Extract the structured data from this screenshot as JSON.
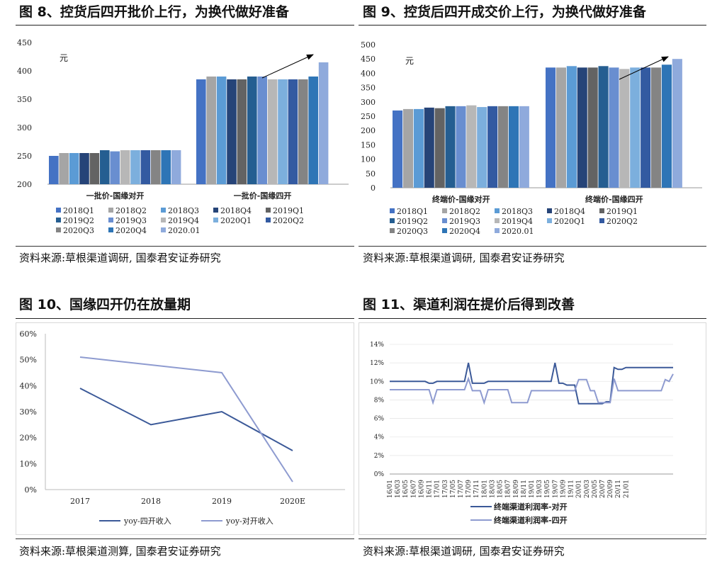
{
  "colors": {
    "2018Q1": "#4472c4",
    "2018Q2": "#a5a5a5",
    "2018Q3": "#5b9bd5",
    "2018Q4": "#264478",
    "2019Q1": "#636363",
    "2019Q2": "#255e91",
    "2019Q3": "#698ed0",
    "2019Q4": "#b7b7b7",
    "2020Q1": "#7cafdd",
    "2020Q2": "#335aa1",
    "2020Q3": "#848484",
    "2020Q4": "#2e75b6",
    "2020.01": "#8faadc",
    "line_dark": "#3b5998",
    "line_light": "#8e9bd0",
    "arrow": "#000000"
  },
  "figures": [
    {
      "title": "图 8、控货后四开批价上行，为换代做好准备",
      "source": "资料来源:草根渠道调研, 国泰君安证券研究",
      "chart_data": {
        "type": "bar",
        "unit_label": "元",
        "ylim": [
          200,
          450
        ],
        "yticks": [
          "450",
          "400",
          "350",
          "300",
          "250",
          "200"
        ],
        "categories": [
          "一批价-国缘对开",
          "一批价-国缘四开"
        ],
        "series": [
          {
            "name": "2018Q1",
            "values": [
              250,
              385
            ]
          },
          {
            "name": "2018Q2",
            "values": [
              255,
              390
            ]
          },
          {
            "name": "2018Q3",
            "values": [
              255,
              390
            ]
          },
          {
            "name": "2018Q4",
            "values": [
              255,
              385
            ]
          },
          {
            "name": "2019Q1",
            "values": [
              255,
              385
            ]
          },
          {
            "name": "2019Q2",
            "values": [
              260,
              390
            ]
          },
          {
            "name": "2019Q3",
            "values": [
              258,
              390
            ]
          },
          {
            "name": "2019Q4",
            "values": [
              260,
              385
            ]
          },
          {
            "name": "2020Q1",
            "values": [
              260,
              385
            ]
          },
          {
            "name": "2020Q2",
            "values": [
              260,
              385
            ]
          },
          {
            "name": "2020Q3",
            "values": [
              260,
              385
            ]
          },
          {
            "name": "2020Q4",
            "values": [
              260,
              390
            ]
          },
          {
            "name": "2020.01",
            "values": [
              260,
              415
            ]
          }
        ],
        "legend_rows": [
          [
            "2018Q1",
            "2018Q2",
            "2018Q3",
            "2018Q4",
            "2019Q1"
          ],
          [
            "2019Q2",
            "2019Q3",
            "2019Q4",
            "2020Q1",
            "2020Q2"
          ],
          [
            "2020Q3",
            "2020Q4",
            "2020.01"
          ]
        ],
        "annotation": "upward arrow over 一批价-国缘四开"
      }
    },
    {
      "title": "图 9、控货后四开成交价上行，为换代做好准备",
      "source": "资料来源:草根渠道调研,     国泰君安证券研究",
      "chart_data": {
        "type": "bar",
        "unit_label": "元",
        "ylim": [
          0,
          500
        ],
        "yticks": [
          "500",
          "450",
          "400",
          "350",
          "300",
          "250",
          "200",
          "150",
          "100",
          "50",
          "0"
        ],
        "categories": [
          "终端价-国缘对开",
          "终端价-国缘四开"
        ],
        "series": [
          {
            "name": "2018Q1",
            "values": [
              270,
              420
            ]
          },
          {
            "name": "2018Q2",
            "values": [
              275,
              420
            ]
          },
          {
            "name": "2018Q3",
            "values": [
              275,
              425
            ]
          },
          {
            "name": "2018Q4",
            "values": [
              280,
              420
            ]
          },
          {
            "name": "2019Q1",
            "values": [
              278,
              420
            ]
          },
          {
            "name": "2019Q2",
            "values": [
              285,
              425
            ]
          },
          {
            "name": "2019Q3",
            "values": [
              285,
              420
            ]
          },
          {
            "name": "2019Q4",
            "values": [
              288,
              415
            ]
          },
          {
            "name": "2020Q1",
            "values": [
              282,
              420
            ]
          },
          {
            "name": "2020Q2",
            "values": [
              285,
              420
            ]
          },
          {
            "name": "2020Q3",
            "values": [
              285,
              420
            ]
          },
          {
            "name": "2020Q4",
            "values": [
              285,
              430
            ]
          },
          {
            "name": "2020.01",
            "values": [
              285,
              450
            ]
          }
        ],
        "legend_rows": [
          [
            "2018Q1",
            "2018Q2",
            "2018Q3",
            "2018Q4",
            "2019Q1"
          ],
          [
            "2019Q2",
            "2019Q3",
            "2019Q4",
            "2020Q1",
            "2020Q2"
          ],
          [
            "2020Q3",
            "2020Q4",
            "2020.01"
          ]
        ],
        "annotation": "upward arrow over 终端价-国缘四开"
      }
    },
    {
      "title": "图 10、国缘四开仍在放量期",
      "source": "资料来源:草根渠道测算, 国泰君安证券研究",
      "chart_data": {
        "type": "line",
        "ylim": [
          0,
          60
        ],
        "yticks": [
          "60%",
          "50%",
          "40%",
          "30%",
          "20%",
          "10%",
          "0%"
        ],
        "categories": [
          "2017",
          "2018",
          "2019",
          "2020E"
        ],
        "series": [
          {
            "name": "yoy-四开收入",
            "color_key": "line_dark",
            "values": [
              39,
              25,
              30,
              15
            ]
          },
          {
            "name": "yoy-对开收入",
            "color_key": "line_light",
            "values": [
              51,
              48,
              45,
              3
            ]
          }
        ]
      }
    },
    {
      "title": "图 11、渠道利润在提价后得到改善",
      "source": "资料来源:草根渠道调研,     国泰君安证券研究",
      "chart_data": {
        "type": "line",
        "ylim": [
          0,
          14
        ],
        "yticks": [
          "14%",
          "12%",
          "10%",
          "8%",
          "6%",
          "4%",
          "2%",
          "0%"
        ],
        "x_start": "16/01",
        "tick_labels": [
          "16/01",
          "16/03",
          "16/05",
          "16/07",
          "16/09",
          "16/11",
          "17/01",
          "17/03",
          "17/05",
          "17/07",
          "17/09",
          "17/11",
          "18/01",
          "18/03",
          "18/05",
          "18/07",
          "18/09",
          "18/11",
          "19/01",
          "19/03",
          "19/05",
          "19/07",
          "19/09",
          "19/11",
          "20/01",
          "20/03",
          "20/05",
          "20/07",
          "20/09",
          "20/11",
          "21/01"
        ],
        "series": [
          {
            "name": "终端渠道利润率-对开",
            "color_key": "line_dark",
            "values": [
              10,
              10,
              10,
              10,
              10,
              10,
              10,
              10,
              10,
              10,
              9.8,
              9.8,
              10,
              10,
              10,
              10,
              10,
              10,
              10,
              10,
              12,
              9.8,
              9.8,
              9.8,
              9.8,
              10,
              10,
              10,
              10,
              10,
              10,
              10,
              10,
              10,
              10,
              10,
              10,
              10,
              10,
              10,
              10,
              10,
              12,
              9.8,
              9.8,
              9.6,
              9.6,
              9.6,
              7.6,
              7.6,
              7.6,
              7.6,
              7.6,
              7.6,
              7.6,
              7.8,
              7.8,
              11.5,
              11.3,
              11.3,
              11.5,
              11.5,
              11.5,
              11.5,
              11.5,
              11.5,
              11.5,
              11.5,
              11.5,
              11.5,
              11.5,
              11.5,
              11.5
            ]
          },
          {
            "name": "终端渠道利润率-四开",
            "color_key": "line_light",
            "values": [
              9.1,
              9.1,
              9.1,
              9.1,
              9.1,
              9.1,
              9.1,
              9.1,
              9.1,
              9.1,
              9.1,
              7.7,
              9.1,
              9.1,
              9.1,
              9.1,
              9.1,
              9.1,
              9.1,
              9.1,
              10.3,
              9,
              9,
              9,
              7.7,
              9.1,
              9.1,
              9.1,
              9.1,
              9.1,
              9.1,
              7.7,
              7.7,
              7.7,
              7.7,
              7.7,
              9,
              9,
              9,
              9,
              9,
              9,
              9,
              9,
              9,
              9,
              9,
              9,
              10.2,
              10.2,
              10.2,
              9,
              9,
              7.7,
              7.7,
              7.7,
              7.7,
              10.3,
              9,
              9,
              9,
              9,
              9,
              9,
              9,
              9,
              9,
              9,
              9,
              9,
              10.2,
              10,
              10.8
            ]
          }
        ]
      }
    }
  ]
}
